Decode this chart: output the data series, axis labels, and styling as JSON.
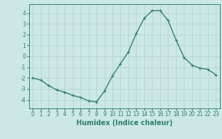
{
  "x": [
    0,
    1,
    2,
    3,
    4,
    5,
    6,
    7,
    8,
    9,
    10,
    11,
    12,
    13,
    14,
    15,
    16,
    17,
    18,
    19,
    20,
    21,
    22,
    23
  ],
  "y": [
    -2.0,
    -2.2,
    -2.7,
    -3.1,
    -3.3,
    -3.6,
    -3.8,
    -4.1,
    -4.2,
    -3.2,
    -1.8,
    -0.7,
    0.4,
    2.1,
    3.5,
    4.2,
    4.2,
    3.3,
    1.5,
    -0.1,
    -0.8,
    -1.1,
    -1.2,
    -1.7
  ],
  "line_color": "#2d7d6e",
  "marker": "+",
  "marker_size": 3,
  "background_color": "#cce8e6",
  "grid_color": "#b0cfcc",
  "xlabel": "Humidex (Indice chaleur)",
  "xlim": [
    -0.5,
    23.5
  ],
  "ylim": [
    -4.8,
    4.8
  ],
  "yticks": [
    -4,
    -3,
    -2,
    -1,
    0,
    1,
    2,
    3,
    4
  ],
  "xticks": [
    0,
    1,
    2,
    3,
    4,
    5,
    6,
    7,
    8,
    9,
    10,
    11,
    12,
    13,
    14,
    15,
    16,
    17,
    18,
    19,
    20,
    21,
    22,
    23
  ],
  "tick_color": "#2d7d6e",
  "tick_fontsize": 5.5,
  "xlabel_fontsize": 7,
  "line_width": 1.0,
  "marker_edge_width": 0.9
}
